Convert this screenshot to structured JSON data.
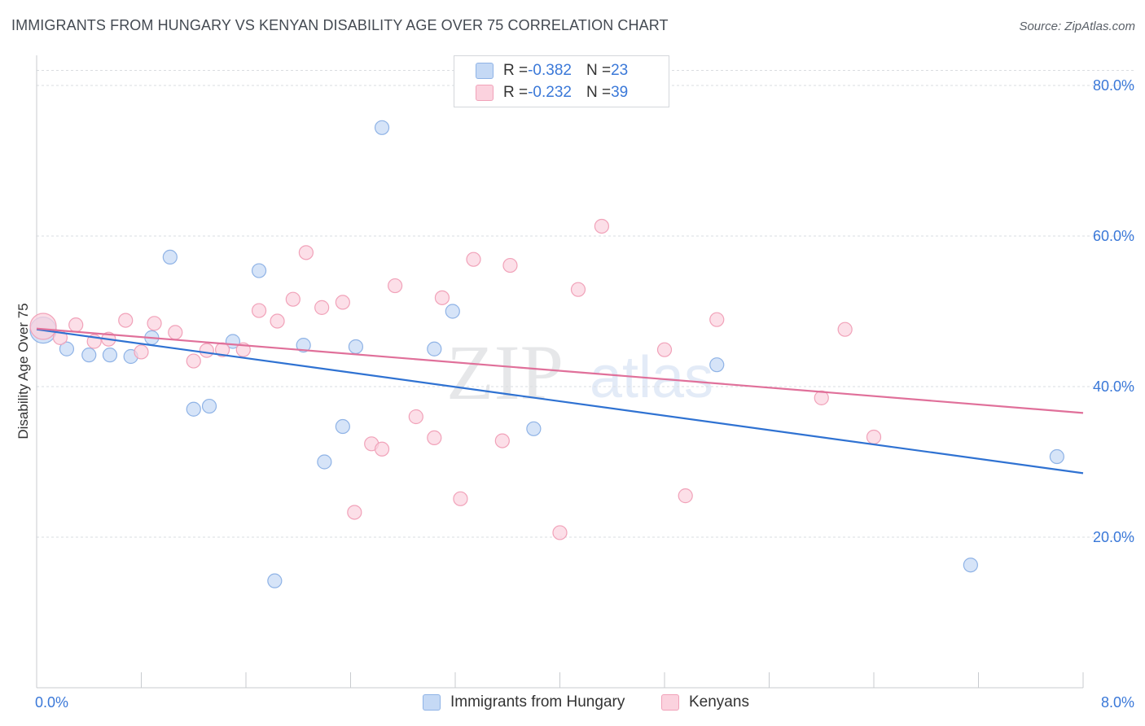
{
  "title": "IMMIGRANTS FROM HUNGARY VS KENYAN DISABILITY AGE OVER 75 CORRELATION CHART",
  "source": "Source: ZipAtlas.com",
  "watermark": {
    "zip": "ZIP",
    "atlas": "atlas"
  },
  "colors": {
    "hungary_fill": "#c5d9f5",
    "hungary_stroke": "#8fb3e6",
    "hungary_line": "#2f72d2",
    "kenya_fill": "#fbd2de",
    "kenya_stroke": "#f1a2b9",
    "kenya_line": "#e0709a",
    "axis_label": "#3a78d8",
    "grid": "#d9dce0"
  },
  "legend_top": [
    {
      "r_label": "R = ",
      "r_value": "-0.382",
      "n_label": "N = ",
      "n_value": "23"
    },
    {
      "r_label": "R = ",
      "r_value": "-0.232",
      "n_label": "N = ",
      "n_value": "39"
    }
  ],
  "legend_bottom": [
    "Immigrants from Hungary",
    "Kenyans"
  ],
  "chart_data": {
    "type": "scatter",
    "title": "IMMIGRANTS FROM HUNGARY VS KENYAN DISABILITY AGE OVER 75 CORRELATION CHART",
    "xlabel": "",
    "ylabel": "Disability Age Over 75",
    "xlim": [
      0,
      8
    ],
    "ylim": [
      0,
      84
    ],
    "x_ticks": [
      "0.0%",
      "8.0%"
    ],
    "y_ticks": [
      {
        "value": 20,
        "label": "20.0%"
      },
      {
        "value": 40,
        "label": "40.0%"
      },
      {
        "value": 60,
        "label": "60.0%"
      },
      {
        "value": 80,
        "label": "80.0%"
      }
    ],
    "grid": true,
    "legend_position": "top-center",
    "series": [
      {
        "name": "Immigrants from Hungary",
        "points": [
          [
            0.05,
            47.5
          ],
          [
            0.23,
            45.0
          ],
          [
            0.4,
            44.2
          ],
          [
            0.56,
            44.2
          ],
          [
            0.72,
            44.0
          ],
          [
            0.88,
            46.5
          ],
          [
            1.02,
            57.2
          ],
          [
            1.2,
            37.0
          ],
          [
            1.32,
            37.4
          ],
          [
            1.5,
            46.0
          ],
          [
            1.7,
            55.4
          ],
          [
            1.82,
            14.2
          ],
          [
            2.04,
            45.5
          ],
          [
            2.2,
            30.0
          ],
          [
            2.34,
            34.7
          ],
          [
            2.44,
            45.3
          ],
          [
            2.64,
            74.4
          ],
          [
            3.04,
            45.0
          ],
          [
            3.18,
            50.0
          ],
          [
            3.8,
            34.4
          ],
          [
            5.2,
            42.9
          ],
          [
            7.14,
            16.3
          ],
          [
            7.8,
            30.7
          ]
        ],
        "trend": {
          "x": [
            0,
            8
          ],
          "y": [
            47.6,
            28.5
          ]
        }
      },
      {
        "name": "Kenyans",
        "points": [
          [
            0.05,
            48.0
          ],
          [
            0.18,
            46.5
          ],
          [
            0.3,
            48.2
          ],
          [
            0.44,
            46.0
          ],
          [
            0.55,
            46.3
          ],
          [
            0.68,
            48.8
          ],
          [
            0.8,
            44.6
          ],
          [
            0.9,
            48.4
          ],
          [
            1.06,
            47.2
          ],
          [
            1.2,
            43.4
          ],
          [
            1.3,
            44.8
          ],
          [
            1.42,
            44.9
          ],
          [
            1.58,
            44.9
          ],
          [
            1.7,
            50.1
          ],
          [
            1.84,
            48.7
          ],
          [
            1.96,
            51.6
          ],
          [
            2.06,
            57.8
          ],
          [
            2.18,
            50.5
          ],
          [
            2.34,
            51.2
          ],
          [
            2.43,
            23.3
          ],
          [
            2.56,
            32.4
          ],
          [
            2.64,
            31.7
          ],
          [
            2.74,
            53.4
          ],
          [
            2.9,
            36.0
          ],
          [
            3.04,
            33.2
          ],
          [
            3.1,
            51.8
          ],
          [
            3.24,
            25.1
          ],
          [
            3.34,
            56.9
          ],
          [
            3.56,
            32.8
          ],
          [
            3.62,
            56.1
          ],
          [
            4.0,
            20.6
          ],
          [
            4.14,
            52.9
          ],
          [
            4.32,
            61.3
          ],
          [
            4.8,
            44.9
          ],
          [
            4.96,
            25.5
          ],
          [
            5.2,
            48.9
          ],
          [
            6.0,
            38.5
          ],
          [
            6.18,
            47.6
          ],
          [
            6.4,
            33.3
          ]
        ],
        "trend": {
          "x": [
            0,
            8
          ],
          "y": [
            47.7,
            36.5
          ]
        }
      }
    ]
  }
}
